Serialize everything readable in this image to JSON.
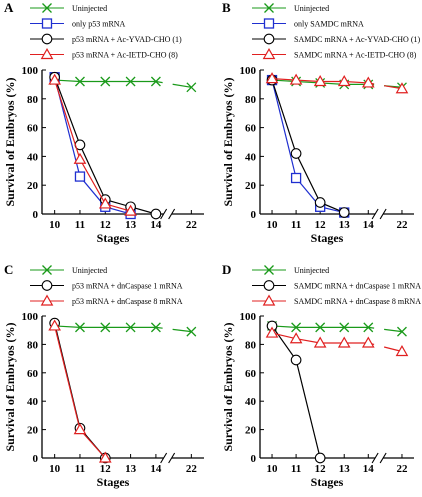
{
  "chart_data": [
    {
      "panel": "A",
      "type": "line",
      "xlabel": "Stages",
      "ylabel": "Survival of Embryos (%)",
      "ylim": [
        0,
        100
      ],
      "yticks": [
        "0",
        "20",
        "40",
        "60",
        "80",
        "100"
      ],
      "xticks": [
        "10",
        "11",
        "12",
        "13",
        "14",
        "22"
      ],
      "grid": false,
      "axis_break": "between 14 and 22",
      "legend_position": "top",
      "series": [
        {
          "name": "Uninjected",
          "color": "#1a9a1a",
          "marker": "x",
          "x": [
            "10",
            "11",
            "12",
            "13",
            "14",
            "22"
          ],
          "values": [
            93,
            92,
            92,
            92,
            92,
            88
          ]
        },
        {
          "name": "only p53 mRNA",
          "color": "#1f2fd0",
          "marker": "square",
          "x": [
            "10",
            "11",
            "12",
            "13"
          ],
          "values": [
            95,
            26,
            5,
            0
          ]
        },
        {
          "name": "p53 mRNA + Ac-YVAD-CHO (1)",
          "color": "#000000",
          "marker": "circle",
          "x": [
            "10",
            "11",
            "12",
            "13",
            "14"
          ],
          "values": [
            95,
            48,
            10,
            5,
            0
          ]
        },
        {
          "name": "p53 mRNA + Ac-IETD-CHO (8)",
          "color": "#e02020",
          "marker": "triangle",
          "x": [
            "10",
            "11",
            "12",
            "13"
          ],
          "values": [
            93,
            38,
            7,
            2
          ]
        }
      ]
    },
    {
      "panel": "B",
      "type": "line",
      "xlabel": "Stages",
      "ylabel": "Survival of Embryos (%)",
      "ylim": [
        0,
        100
      ],
      "yticks": [
        "0",
        "20",
        "40",
        "60",
        "80",
        "100"
      ],
      "xticks": [
        "10",
        "11",
        "12",
        "13",
        "14",
        "22"
      ],
      "grid": false,
      "axis_break": "between 14 and 22",
      "legend_position": "top",
      "series": [
        {
          "name": "Uninjected",
          "color": "#1a9a1a",
          "marker": "x",
          "x": [
            "10",
            "11",
            "12",
            "13",
            "14",
            "22"
          ],
          "values": [
            93,
            92,
            91,
            90,
            90,
            88
          ]
        },
        {
          "name": "only SAMDC mRNA",
          "color": "#1f2fd0",
          "marker": "square",
          "x": [
            "10",
            "11",
            "12",
            "13"
          ],
          "values": [
            93,
            25,
            5,
            1
          ]
        },
        {
          "name": "SAMDC mRNA + Ac-YVAD-CHO (1)",
          "color": "#000000",
          "marker": "circle",
          "x": [
            "10",
            "11",
            "12",
            "13"
          ],
          "values": [
            93,
            42,
            8,
            1
          ]
        },
        {
          "name": "SAMDC mRNA + Ac-IETD-CHO (8)",
          "color": "#e02020",
          "marker": "triangle",
          "x": [
            "10",
            "11",
            "12",
            "13",
            "14",
            "22"
          ],
          "values": [
            94,
            93,
            92,
            92,
            91,
            87
          ]
        }
      ]
    },
    {
      "panel": "C",
      "type": "line",
      "xlabel": "Stages",
      "ylabel": "Survival of Embryos (%)",
      "ylim": [
        0,
        100
      ],
      "yticks": [
        "0",
        "20",
        "40",
        "60",
        "80",
        "100"
      ],
      "xticks": [
        "10",
        "11",
        "12",
        "13",
        "14",
        "22"
      ],
      "grid": false,
      "axis_break": "between 14 and 22",
      "legend_position": "top",
      "series": [
        {
          "name": "Uninjected",
          "color": "#1a9a1a",
          "marker": "x",
          "x": [
            "10",
            "11",
            "12",
            "13",
            "14",
            "22"
          ],
          "values": [
            93,
            92,
            92,
            92,
            92,
            89
          ]
        },
        {
          "name": "p53 mRNA + dnCaspase 1 mRNA",
          "color": "#000000",
          "marker": "circle",
          "x": [
            "10",
            "11",
            "12"
          ],
          "values": [
            95,
            21,
            0
          ]
        },
        {
          "name": "p53 mRNA + dnCaspase 8 mRNA",
          "color": "#e02020",
          "marker": "triangle",
          "x": [
            "10",
            "11",
            "12"
          ],
          "values": [
            93,
            20,
            0
          ]
        }
      ]
    },
    {
      "panel": "D",
      "type": "line",
      "xlabel": "Stages",
      "ylabel": "Survival of Embryos (%)",
      "ylim": [
        0,
        100
      ],
      "yticks": [
        "0",
        "20",
        "40",
        "60",
        "80",
        "100"
      ],
      "xticks": [
        "10",
        "11",
        "12",
        "13",
        "14",
        "22"
      ],
      "grid": false,
      "axis_break": "between 14 and 22",
      "legend_position": "top",
      "series": [
        {
          "name": "Uninjected",
          "color": "#1a9a1a",
          "marker": "x",
          "x": [
            "10",
            "11",
            "12",
            "13",
            "14",
            "22"
          ],
          "values": [
            93,
            92,
            92,
            92,
            92,
            89
          ]
        },
        {
          "name": "SAMDC mRNA + dnCaspase 1 mRNA",
          "color": "#000000",
          "marker": "circle",
          "x": [
            "10",
            "11",
            "12"
          ],
          "values": [
            93,
            69,
            0
          ]
        },
        {
          "name": "SAMDC mRNA + dnCaspase 8 mRNA",
          "color": "#e02020",
          "marker": "triangle",
          "x": [
            "10",
            "11",
            "12",
            "13",
            "14",
            "22"
          ],
          "values": [
            88,
            84,
            81,
            81,
            81,
            75
          ]
        }
      ]
    }
  ]
}
